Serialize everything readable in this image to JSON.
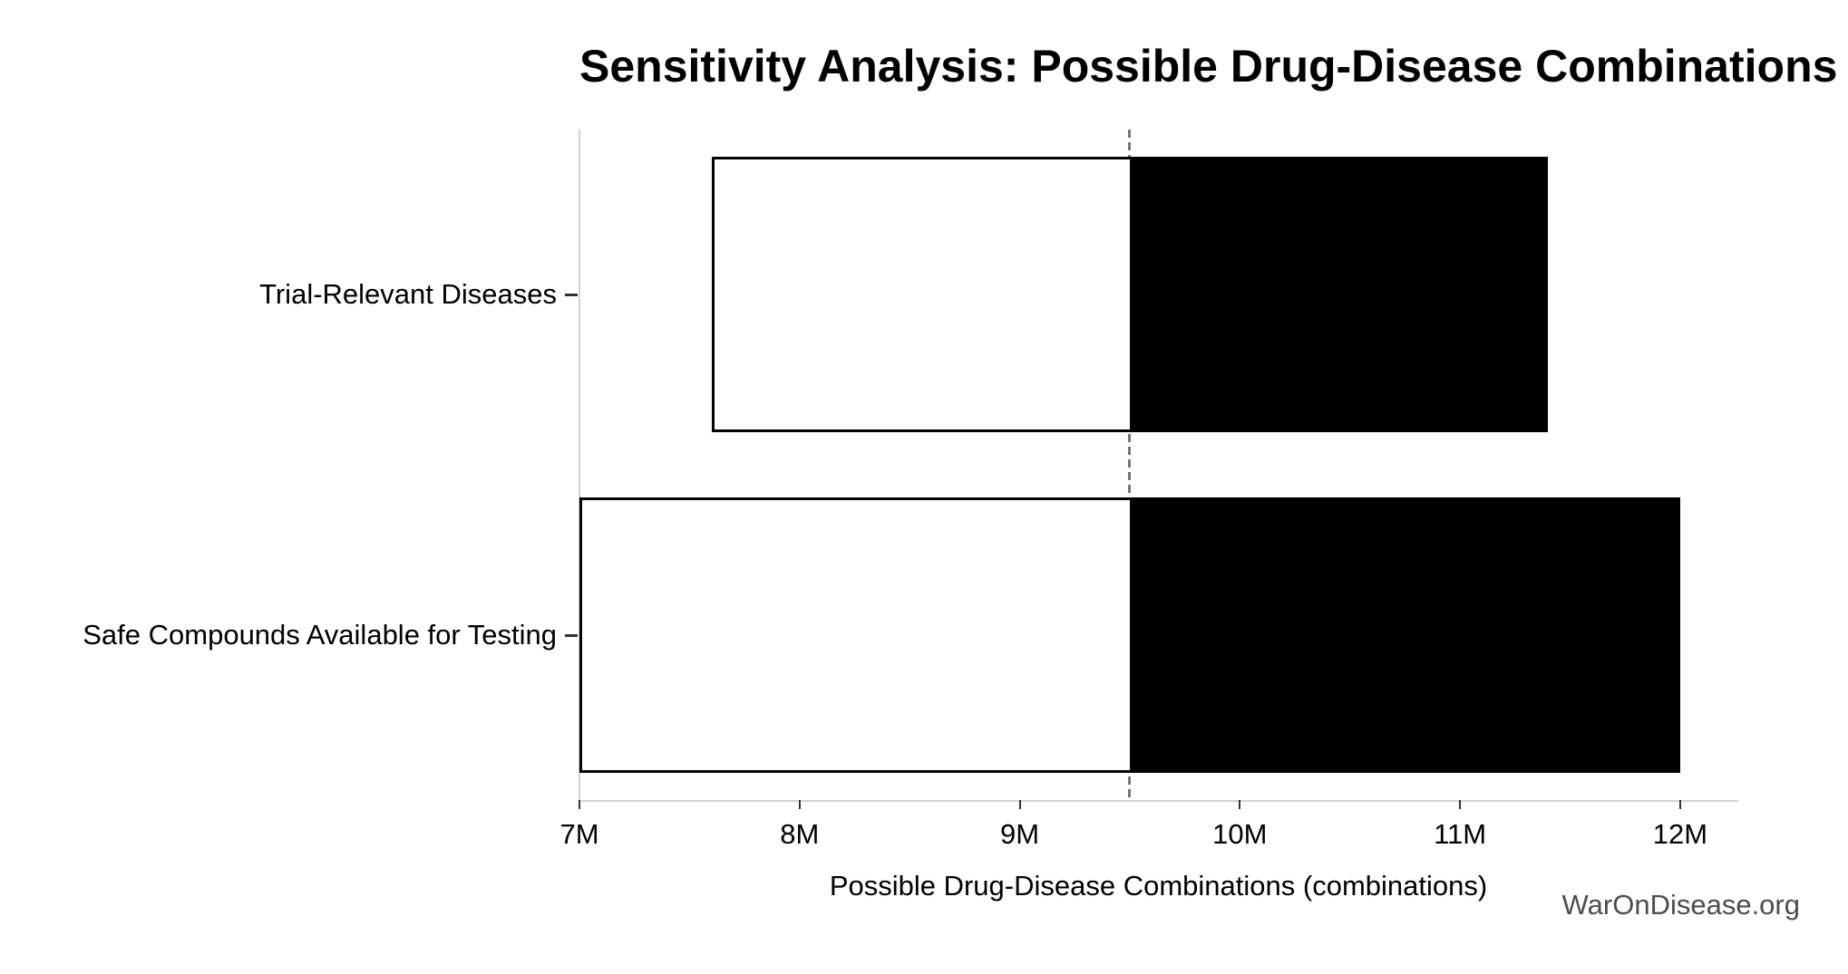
{
  "watermark": "WarOnDisease.org",
  "chart_data": {
    "type": "bar",
    "orientation": "horizontal",
    "title": "Sensitivity Analysis: Possible Drug-Disease Combinations",
    "xlabel": "Possible Drug-Disease Combinations (combinations)",
    "ylabel": "",
    "categories": [
      "Trial-Relevant Diseases",
      "Safe Compounds Available for Testing"
    ],
    "bars": [
      {
        "label": "Trial-Relevant Diseases",
        "low_millions": 7.6,
        "high_millions": 11.4
      },
      {
        "label": "Safe Compounds Available for Testing",
        "low_millions": 7.0,
        "high_millions": 12.0
      }
    ],
    "baseline_millions": 9.5,
    "x_tick_labels": [
      "7M",
      "8M",
      "9M",
      "10M",
      "11M",
      "12M"
    ],
    "x_tick_values_millions": [
      7,
      8,
      9,
      10,
      11,
      12
    ],
    "xlim_millions": [
      7.0,
      12.26
    ],
    "grid": false,
    "legend": "none",
    "colors": {
      "bar_low_fill": "#ffffff",
      "bar_high_fill": "#000000",
      "bar_border": "#000000",
      "baseline": "#757575",
      "spine": "#d2d2d2",
      "tick": "#333333",
      "text": "#000000",
      "watermark": "#4d4d4d"
    }
  }
}
